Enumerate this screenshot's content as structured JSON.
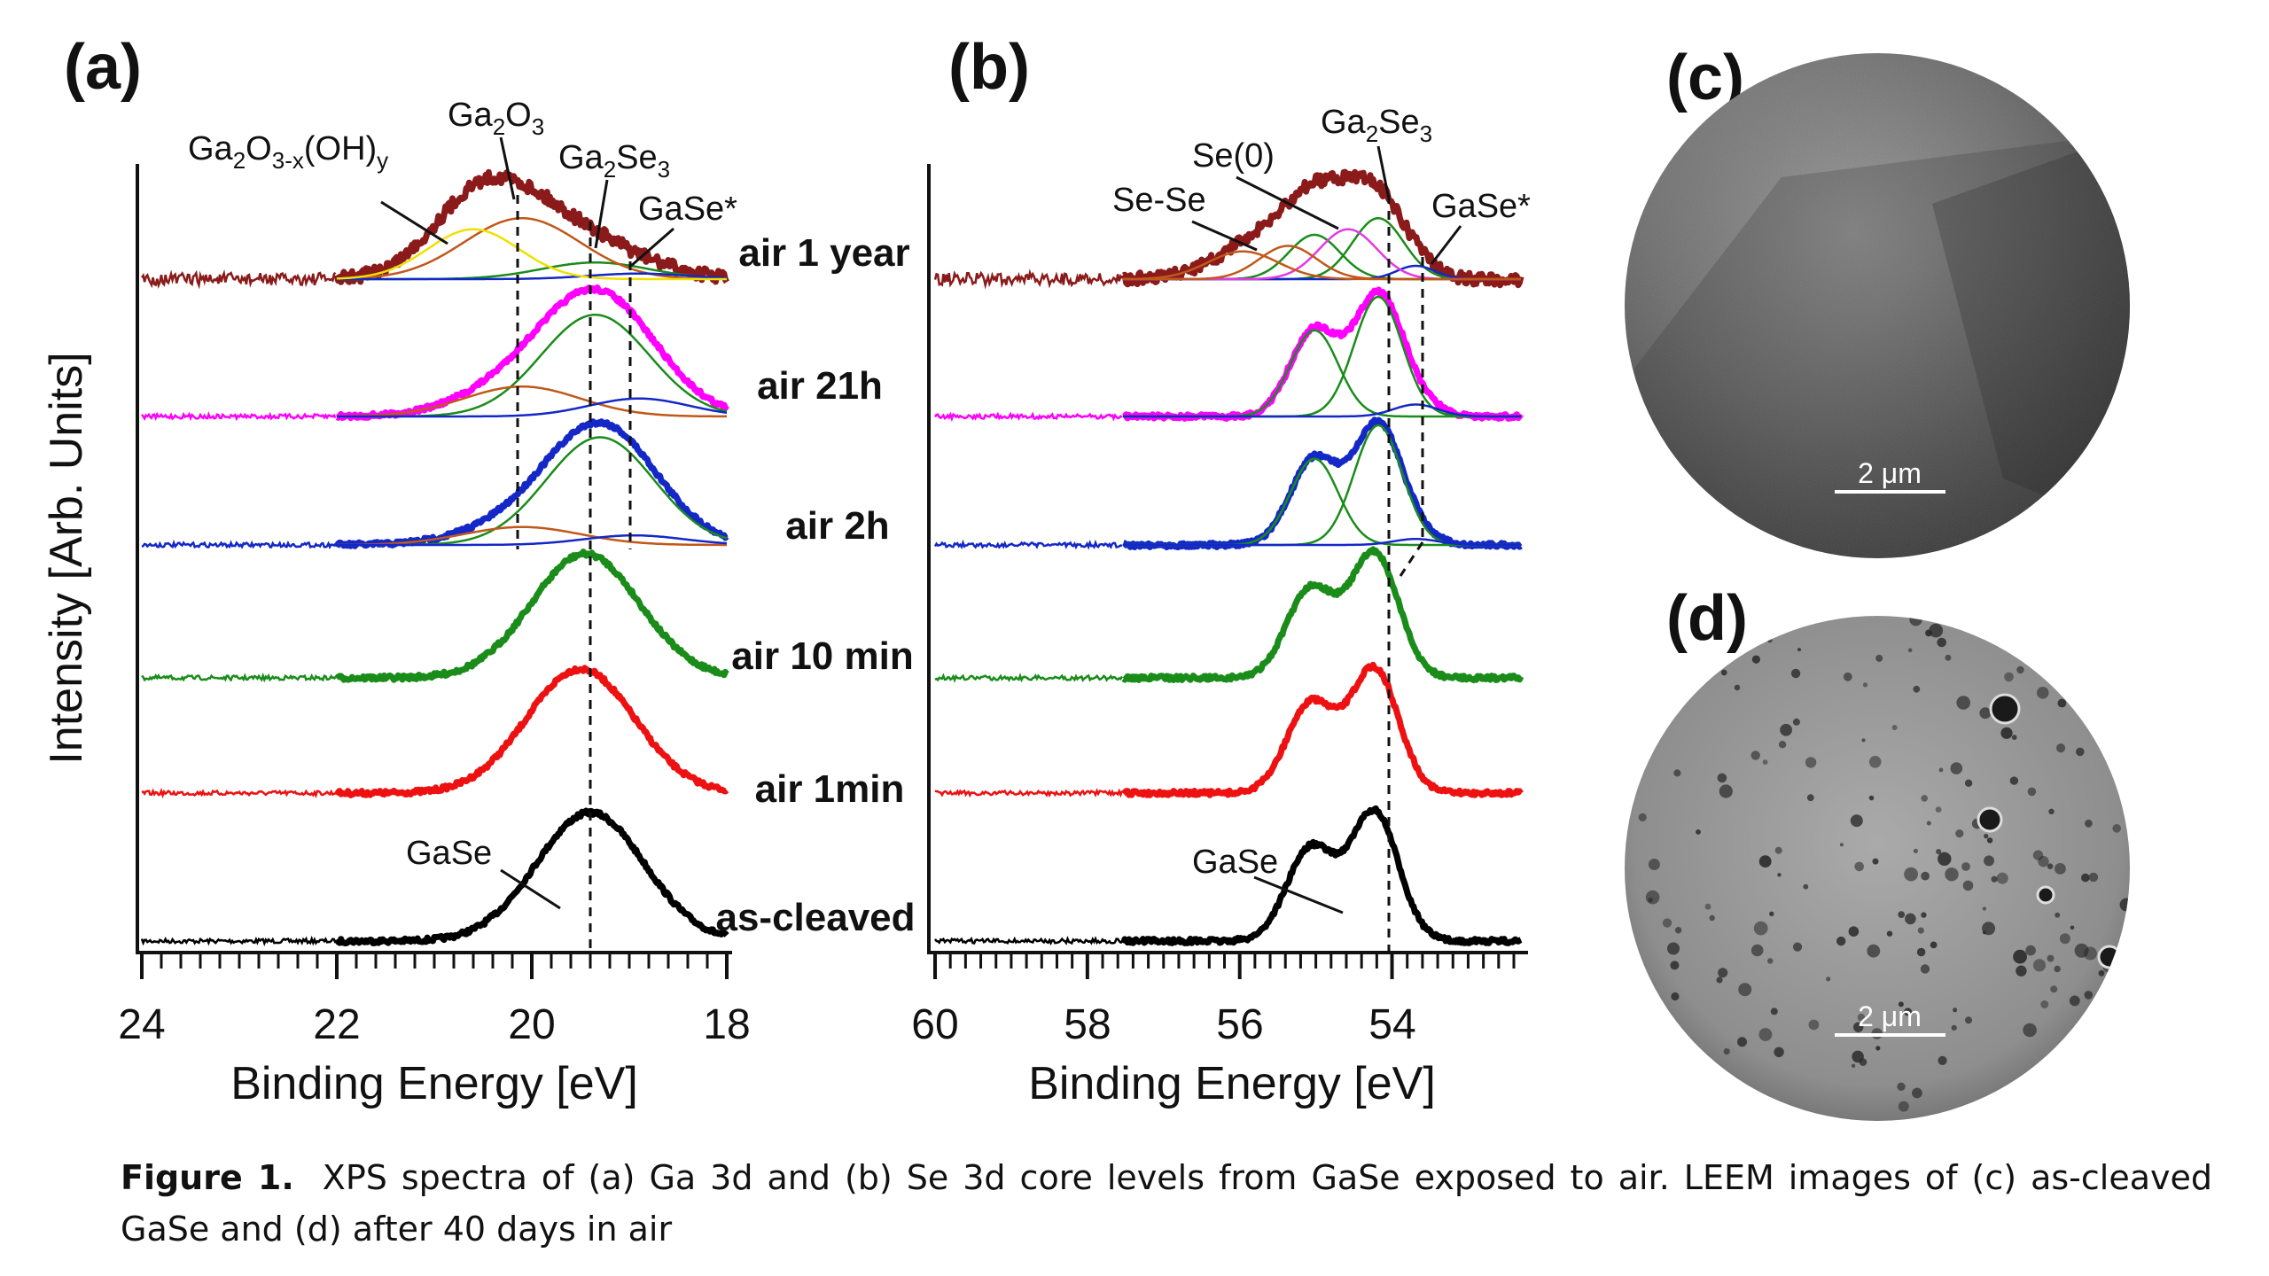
{
  "caption": {
    "label": "Figure 1.",
    "text": "XPS spectra of (a) Ga 3d and (b) Se 3d  core levels from GaSe exposed to air. LEEM images of (c) as-cleaved GaSe and (d) after 40 days in air"
  },
  "panels": {
    "a": {
      "letter": "(a)"
    },
    "b": {
      "letter": "(b)"
    },
    "c": {
      "letter": "(c)",
      "scale_bar": "2 μm"
    },
    "d": {
      "letter": "(d)",
      "scale_bar": "2 μm"
    }
  },
  "colors": {
    "air 1 year": "#8b1a1a",
    "air 21h": "#ff00ff",
    "air 2h": "#1428c8",
    "air 10 min": "#1a8c1a",
    "air 1min": "#ee1111",
    "as-cleaved": "#000000",
    "comp_Ga2O3": "#c0581a",
    "comp_GaOOH": "#f0e000",
    "comp_Ga2Se3": "#1a8c1a",
    "comp_GaSeStar": "#1428c8",
    "comp_SeSe": "#c0581a",
    "comp_Se0": "#e23ae2"
  },
  "chart_data": [
    {
      "type": "line",
      "panel": "(a)",
      "xlabel": "Binding Energy [eV]",
      "ylabel": "Intensity [Arb. Units]",
      "xlim": [
        24,
        18
      ],
      "x_ticks": [
        "24",
        "22",
        "20",
        "18"
      ],
      "series": [
        {
          "name": "as-cleaved",
          "peaks": [
            {
              "center": 19.4,
              "fwhm": 1.3,
              "height": 1.0
            }
          ]
        },
        {
          "name": "air 1min",
          "peaks": [
            {
              "center": 19.5,
              "fwhm": 1.3,
              "height": 1.0
            }
          ]
        },
        {
          "name": "air 10 min",
          "peaks": [
            {
              "center": 19.45,
              "fwhm": 1.3,
              "height": 1.0
            }
          ]
        },
        {
          "name": "air 2h",
          "peaks": [
            {
              "center": 19.3,
              "fwhm": 1.3,
              "height": 0.9
            },
            {
              "center": 20.1,
              "fwhm": 1.4,
              "height": 0.15
            },
            {
              "center": 18.95,
              "fwhm": 1.2,
              "height": 0.08
            }
          ]
        },
        {
          "name": "air 21h",
          "peaks": [
            {
              "center": 19.35,
              "fwhm": 1.3,
              "height": 0.85
            },
            {
              "center": 20.1,
              "fwhm": 1.4,
              "height": 0.25
            },
            {
              "center": 18.9,
              "fwhm": 1.2,
              "height": 0.15
            }
          ]
        },
        {
          "name": "air 1 year",
          "peaks": [
            {
              "center": 20.1,
              "fwhm": 1.4,
              "height": 0.55
            },
            {
              "center": 20.6,
              "fwhm": 1.1,
              "height": 0.45
            },
            {
              "center": 19.35,
              "fwhm": 1.3,
              "height": 0.15
            },
            {
              "center": 18.9,
              "fwhm": 1.2,
              "height": 0.05
            }
          ]
        }
      ],
      "dashed_lines": [
        20.1,
        19.4,
        18.9
      ],
      "annotations": [
        "Ga2O3-x(OH)y",
        "Ga2O3",
        "Ga2Se3",
        "GaSe*",
        "GaSe"
      ]
    },
    {
      "type": "line",
      "panel": "(b)",
      "xlabel": "Binding Energy [eV]",
      "xlim": [
        60,
        52.2
      ],
      "x_ticks": [
        "60",
        "58",
        "56",
        "54"
      ],
      "series": [
        {
          "name": "as-cleaved",
          "peaks": [
            {
              "center": 54.15,
              "fwhm": 0.75,
              "height": 1.0
            },
            {
              "center": 55.0,
              "fwhm": 0.75,
              "height": 0.72
            }
          ]
        },
        {
          "name": "air 1min",
          "peaks": [
            {
              "center": 54.15,
              "fwhm": 0.75,
              "height": 1.0
            },
            {
              "center": 55.0,
              "fwhm": 0.75,
              "height": 0.72
            }
          ]
        },
        {
          "name": "air 10 min",
          "peaks": [
            {
              "center": 54.15,
              "fwhm": 0.75,
              "height": 1.0
            },
            {
              "center": 55.0,
              "fwhm": 0.75,
              "height": 0.72
            }
          ]
        },
        {
          "name": "air 2h",
          "peaks": [
            {
              "center": 54.1,
              "fwhm": 0.75,
              "height": 1.0
            },
            {
              "center": 54.95,
              "fwhm": 0.75,
              "height": 0.72
            },
            {
              "center": 53.6,
              "fwhm": 0.7,
              "height": 0.05
            }
          ]
        },
        {
          "name": "air 21h",
          "peaks": [
            {
              "center": 54.1,
              "fwhm": 0.75,
              "height": 1.0
            },
            {
              "center": 54.95,
              "fwhm": 0.75,
              "height": 0.72
            },
            {
              "center": 53.6,
              "fwhm": 0.7,
              "height": 0.1
            }
          ]
        },
        {
          "name": "air 1 year",
          "peaks": [
            {
              "center": 54.1,
              "fwhm": 0.8,
              "height": 0.55
            },
            {
              "center": 54.95,
              "fwhm": 0.8,
              "height": 0.4
            },
            {
              "center": 54.5,
              "fwhm": 0.9,
              "height": 0.45
            },
            {
              "center": 55.3,
              "fwhm": 0.9,
              "height": 0.3
            },
            {
              "center": 55.9,
              "fwhm": 1.1,
              "height": 0.25
            },
            {
              "center": 53.6,
              "fwhm": 0.6,
              "height": 0.12
            }
          ]
        }
      ],
      "dashed_lines": [
        54.1,
        53.6
      ],
      "annotations": [
        "Ga2Se3",
        "Se(0)",
        "Se-Se",
        "GaSe*",
        "GaSe"
      ]
    }
  ],
  "trace_labels": [
    "air 1 year",
    "air 21h",
    "air 2h",
    "air 10 min",
    "air 1min",
    "as-cleaved"
  ]
}
